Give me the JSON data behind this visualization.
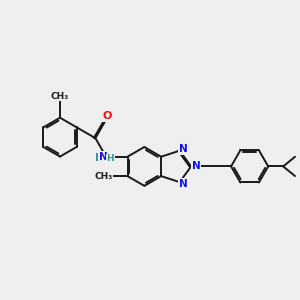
{
  "bg_color": "#efefef",
  "bond_color": "#1a1a1a",
  "bond_width": 1.4,
  "atom_colors": {
    "N": "#1010ee",
    "O": "#ee1010",
    "H": "#3a9090",
    "C": "#1a1a1a"
  },
  "font_size_atom": 7.5,
  "font_size_small": 6.5,
  "fig_width": 3.0,
  "fig_height": 3.0,
  "dpi": 100,
  "xlim": [
    0.0,
    10.5
  ],
  "ylim": [
    2.5,
    9.0
  ]
}
